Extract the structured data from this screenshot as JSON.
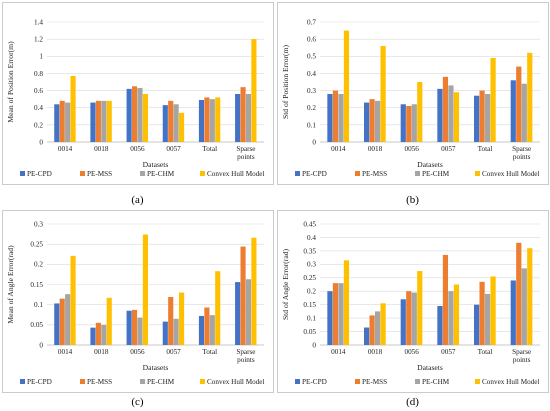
{
  "colors": {
    "PE-CPD": "#4472C4",
    "PE-MSS": "#ED7D31",
    "PE-CHM": "#A5A5A5",
    "Convex Hull Model": "#FFC000"
  },
  "chart_data": [
    {
      "type": "bar",
      "caption": "(a)",
      "ylabel": "Mean of Position Error(m)",
      "xlabel": "Datasets",
      "ylim": [
        0,
        1.4
      ],
      "yticks": [
        "0",
        "0.2",
        "0.4",
        "0.6",
        "0.8",
        "1",
        "1.2",
        "1.4"
      ],
      "categories": [
        "0014",
        "0018",
        "0056",
        "0057",
        "Total",
        "Sparse points"
      ],
      "series": [
        {
          "name": "PE-CPD",
          "values": [
            0.44,
            0.46,
            0.62,
            0.43,
            0.49,
            0.56
          ]
        },
        {
          "name": "PE-MSS",
          "values": [
            0.48,
            0.48,
            0.65,
            0.48,
            0.52,
            0.64
          ]
        },
        {
          "name": "PE-CHM",
          "values": [
            0.46,
            0.48,
            0.63,
            0.44,
            0.5,
            0.56
          ]
        },
        {
          "name": "Convex Hull Model",
          "values": [
            0.77,
            0.48,
            0.56,
            0.34,
            0.52,
            1.2
          ]
        }
      ]
    },
    {
      "type": "bar",
      "caption": "(b)",
      "ylabel": "Std of Position Error(m)",
      "xlabel": "Datasets",
      "ylim": [
        0,
        0.7
      ],
      "yticks": [
        "0",
        "0.1",
        "0.2",
        "0.3",
        "0.4",
        "0.5",
        "0.6",
        "0.7"
      ],
      "categories": [
        "0014",
        "0018",
        "0056",
        "0057",
        "Total",
        "Sparse points"
      ],
      "series": [
        {
          "name": "PE-CPD",
          "values": [
            0.28,
            0.23,
            0.22,
            0.31,
            0.27,
            0.36
          ]
        },
        {
          "name": "PE-MSS",
          "values": [
            0.3,
            0.25,
            0.21,
            0.38,
            0.3,
            0.44
          ]
        },
        {
          "name": "PE-CHM",
          "values": [
            0.28,
            0.24,
            0.22,
            0.33,
            0.28,
            0.34
          ]
        },
        {
          "name": "Convex Hull Model",
          "values": [
            0.65,
            0.56,
            0.35,
            0.29,
            0.49,
            0.52
          ]
        }
      ]
    },
    {
      "type": "bar",
      "caption": "(c)",
      "ylabel": "Mean of Angle Error(rad)",
      "xlabel": "Datasets",
      "ylim": [
        0,
        0.3
      ],
      "yticks": [
        "0",
        "0.05",
        "0.1",
        "0.15",
        "0.2",
        "0.25",
        "0.3"
      ],
      "categories": [
        "0014",
        "0018",
        "0056",
        "0057",
        "Total",
        "Sparse points"
      ],
      "series": [
        {
          "name": "PE-CPD",
          "values": [
            0.103,
            0.043,
            0.085,
            0.058,
            0.072,
            0.156
          ]
        },
        {
          "name": "PE-MSS",
          "values": [
            0.115,
            0.055,
            0.087,
            0.119,
            0.093,
            0.244
          ]
        },
        {
          "name": "PE-CHM",
          "values": [
            0.126,
            0.05,
            0.068,
            0.065,
            0.074,
            0.163
          ]
        },
        {
          "name": "Convex Hull Model",
          "values": [
            0.221,
            0.117,
            0.274,
            0.13,
            0.183,
            0.266
          ]
        }
      ]
    },
    {
      "type": "bar",
      "caption": "(d)",
      "ylabel": "Std of Angle Error(rad)",
      "xlabel": "Datasets",
      "ylim": [
        0,
        0.45
      ],
      "yticks": [
        "0",
        "0.05",
        "0.1",
        "0.15",
        "0.2",
        "0.25",
        "0.3",
        "0.35",
        "0.4",
        "0.45"
      ],
      "categories": [
        "0014",
        "0018",
        "0056",
        "0057",
        "Total",
        "Sparse points"
      ],
      "series": [
        {
          "name": "PE-CPD",
          "values": [
            0.2,
            0.065,
            0.17,
            0.145,
            0.15,
            0.24
          ]
        },
        {
          "name": "PE-MSS",
          "values": [
            0.23,
            0.11,
            0.2,
            0.335,
            0.235,
            0.38
          ]
        },
        {
          "name": "PE-CHM",
          "values": [
            0.23,
            0.125,
            0.195,
            0.2,
            0.19,
            0.285
          ]
        },
        {
          "name": "Convex Hull Model",
          "values": [
            0.315,
            0.155,
            0.275,
            0.225,
            0.255,
            0.36
          ]
        }
      ]
    }
  ]
}
